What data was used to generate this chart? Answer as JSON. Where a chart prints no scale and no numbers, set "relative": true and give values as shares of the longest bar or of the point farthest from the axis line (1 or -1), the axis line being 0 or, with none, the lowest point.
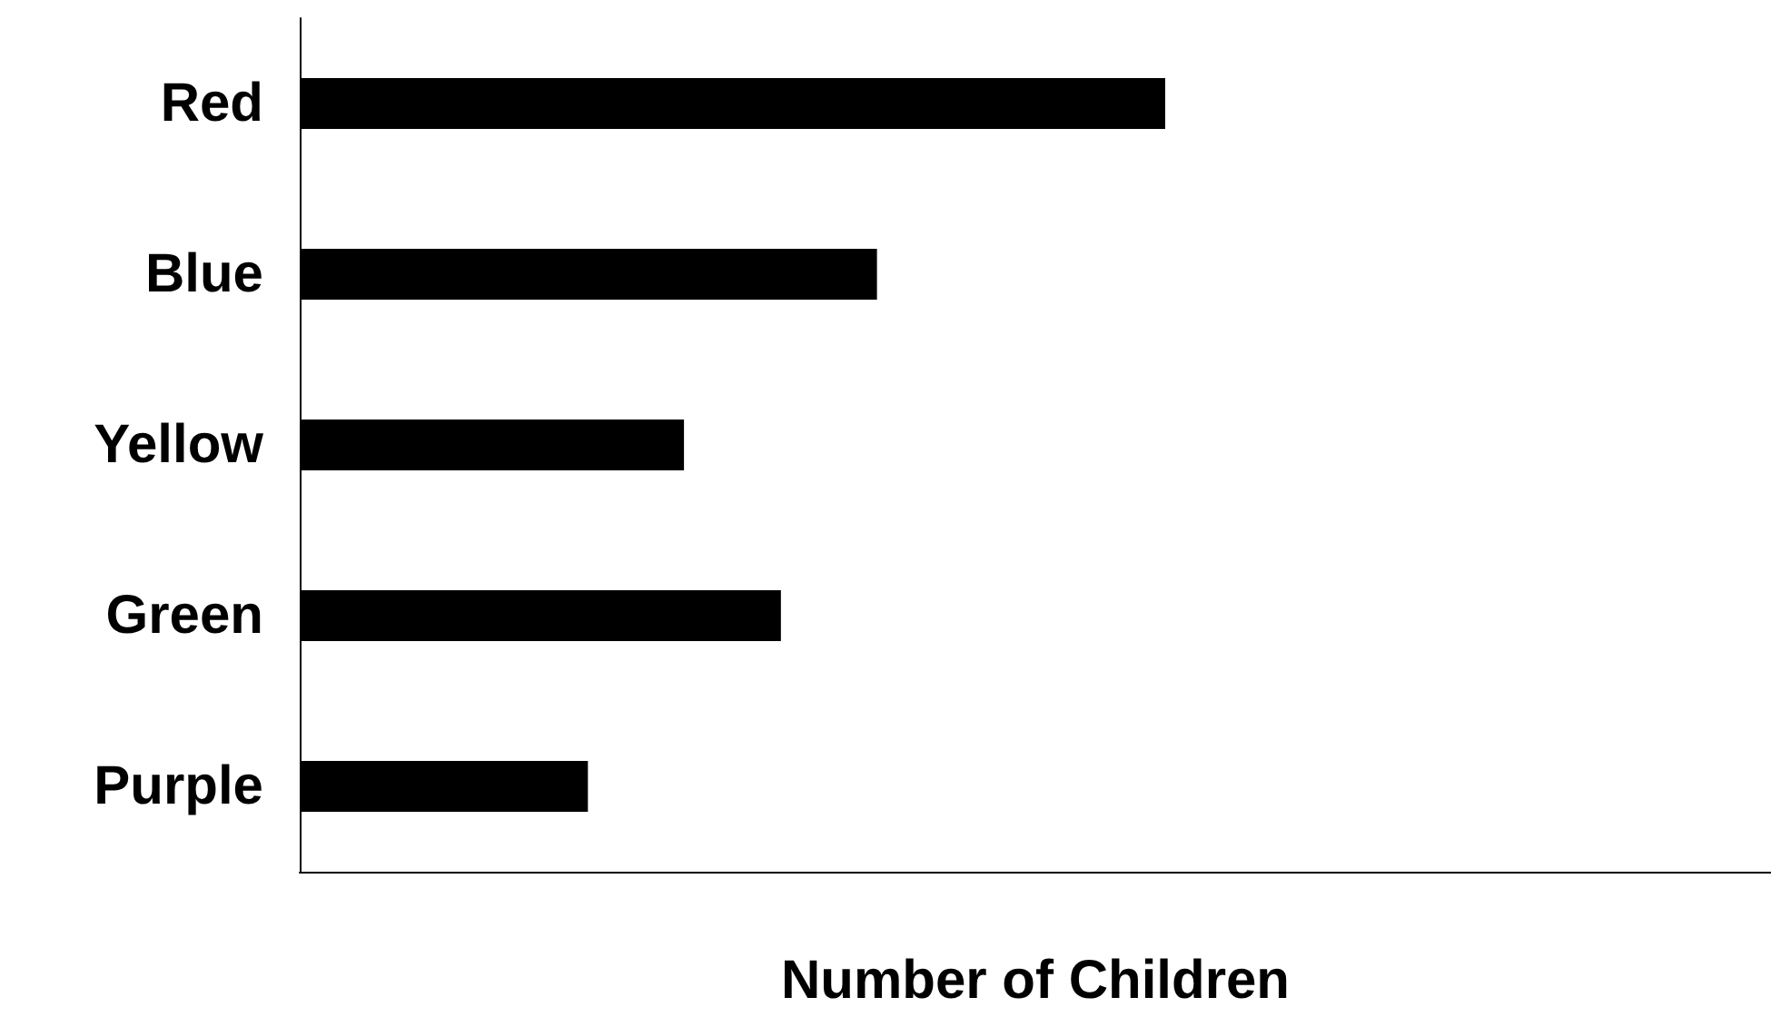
{
  "chart_data": {
    "type": "bar",
    "orientation": "horizontal",
    "relative": true,
    "xlabel": "Number of Children",
    "categories": [
      "Red",
      "Blue",
      "Yellow",
      "Green",
      "Purple"
    ],
    "values": [
      1,
      0.667,
      0.444,
      0.556,
      0.333
    ],
    "color": "#000000"
  }
}
